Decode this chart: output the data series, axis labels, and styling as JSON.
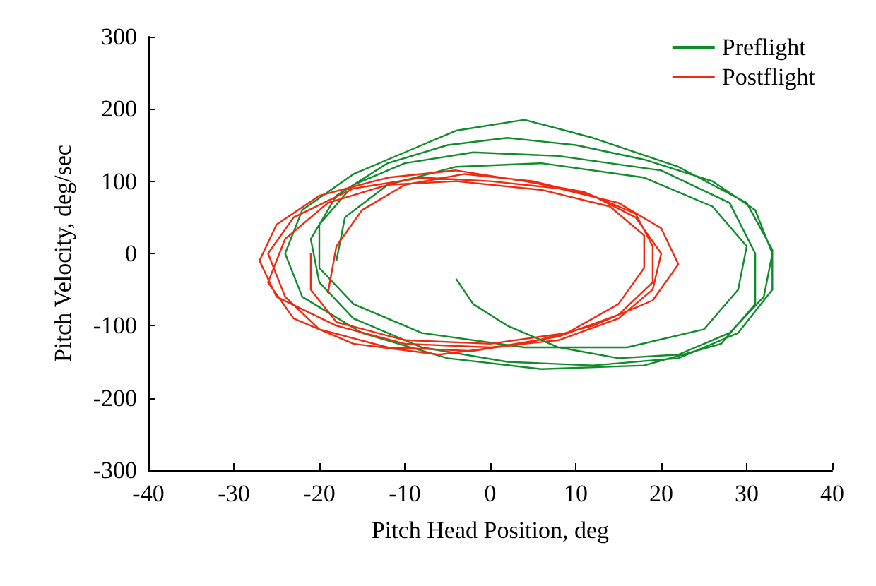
{
  "chart_data": {
    "type": "line",
    "xlabel": "Pitch Head Position, deg",
    "ylabel": "Pitch Velocity, deg/sec",
    "xlim": [
      -40,
      40
    ],
    "xticks": [
      -40,
      -30,
      -20,
      -10,
      0,
      10,
      20,
      30,
      40
    ],
    "ylim": [
      -300,
      300
    ],
    "yticks": [
      -300,
      -200,
      -100,
      0,
      100,
      200,
      300
    ],
    "grid": false,
    "legend": "top right",
    "marker": "none",
    "line_style": "solid",
    "series": [
      {
        "name": "Preflight",
        "color": "#118c2c",
        "x": [
          -4,
          -2,
          2,
          8,
          15,
          22,
          28,
          32,
          33,
          31,
          26,
          18,
          10,
          2,
          -5,
          -12,
          -18,
          -21,
          -20,
          -16,
          -8,
          2,
          12,
          22,
          29,
          33,
          33,
          30,
          22,
          12,
          4,
          -4,
          -10,
          -16,
          -22,
          -24,
          -22,
          -15,
          -5,
          6,
          18,
          27,
          31,
          31,
          28,
          20,
          8,
          -2,
          -10,
          -16,
          -20,
          -20,
          -16,
          -8,
          4,
          16,
          25,
          29,
          30,
          26,
          18,
          6,
          -4,
          -12,
          -17,
          -18
        ],
        "values": [
          -35,
          -70,
          -100,
          -130,
          -145,
          -140,
          -110,
          -60,
          0,
          60,
          100,
          130,
          150,
          160,
          150,
          125,
          80,
          20,
          -40,
          -90,
          -130,
          -150,
          -155,
          -145,
          -110,
          -50,
          5,
          70,
          120,
          160,
          185,
          170,
          140,
          110,
          60,
          0,
          -60,
          -110,
          -145,
          -160,
          -155,
          -125,
          -70,
          0,
          70,
          115,
          135,
          140,
          125,
          95,
          40,
          -20,
          -70,
          -110,
          -130,
          -130,
          -105,
          -50,
          10,
          65,
          105,
          125,
          120,
          95,
          50,
          -10
        ]
      },
      {
        "name": "Postflight",
        "color": "#ee2a10",
        "x": [
          -19,
          -18,
          -15,
          -10,
          -3,
          5,
          12,
          17,
          20,
          19,
          15,
          8,
          0,
          -10,
          -18,
          -25,
          -27,
          -25,
          -20,
          -12,
          -4,
          4,
          11,
          17,
          19,
          19,
          15,
          8,
          -2,
          -12,
          -20,
          -24,
          -26,
          -23,
          -16,
          -8,
          0,
          8,
          15,
          20,
          22,
          19,
          12,
          4,
          -6,
          -16,
          -23,
          -26,
          -24,
          -19,
          -12,
          -4,
          6,
          14,
          18,
          18,
          15,
          9,
          0,
          -10,
          -18,
          -21,
          -21
        ],
        "values": [
          -55,
          10,
          60,
          95,
          110,
          100,
          80,
          50,
          0,
          -50,
          -90,
          -120,
          -130,
          -125,
          -100,
          -60,
          -10,
          40,
          80,
          105,
          115,
          100,
          85,
          55,
          10,
          -40,
          -85,
          -115,
          -135,
          -130,
          -105,
          -60,
          0,
          50,
          90,
          105,
          100,
          90,
          70,
          35,
          -15,
          -65,
          -100,
          -125,
          -140,
          -125,
          -90,
          -40,
          20,
          70,
          95,
          100,
          88,
          65,
          25,
          -20,
          -70,
          -110,
          -125,
          -120,
          -95,
          -50,
          0
        ]
      }
    ]
  }
}
